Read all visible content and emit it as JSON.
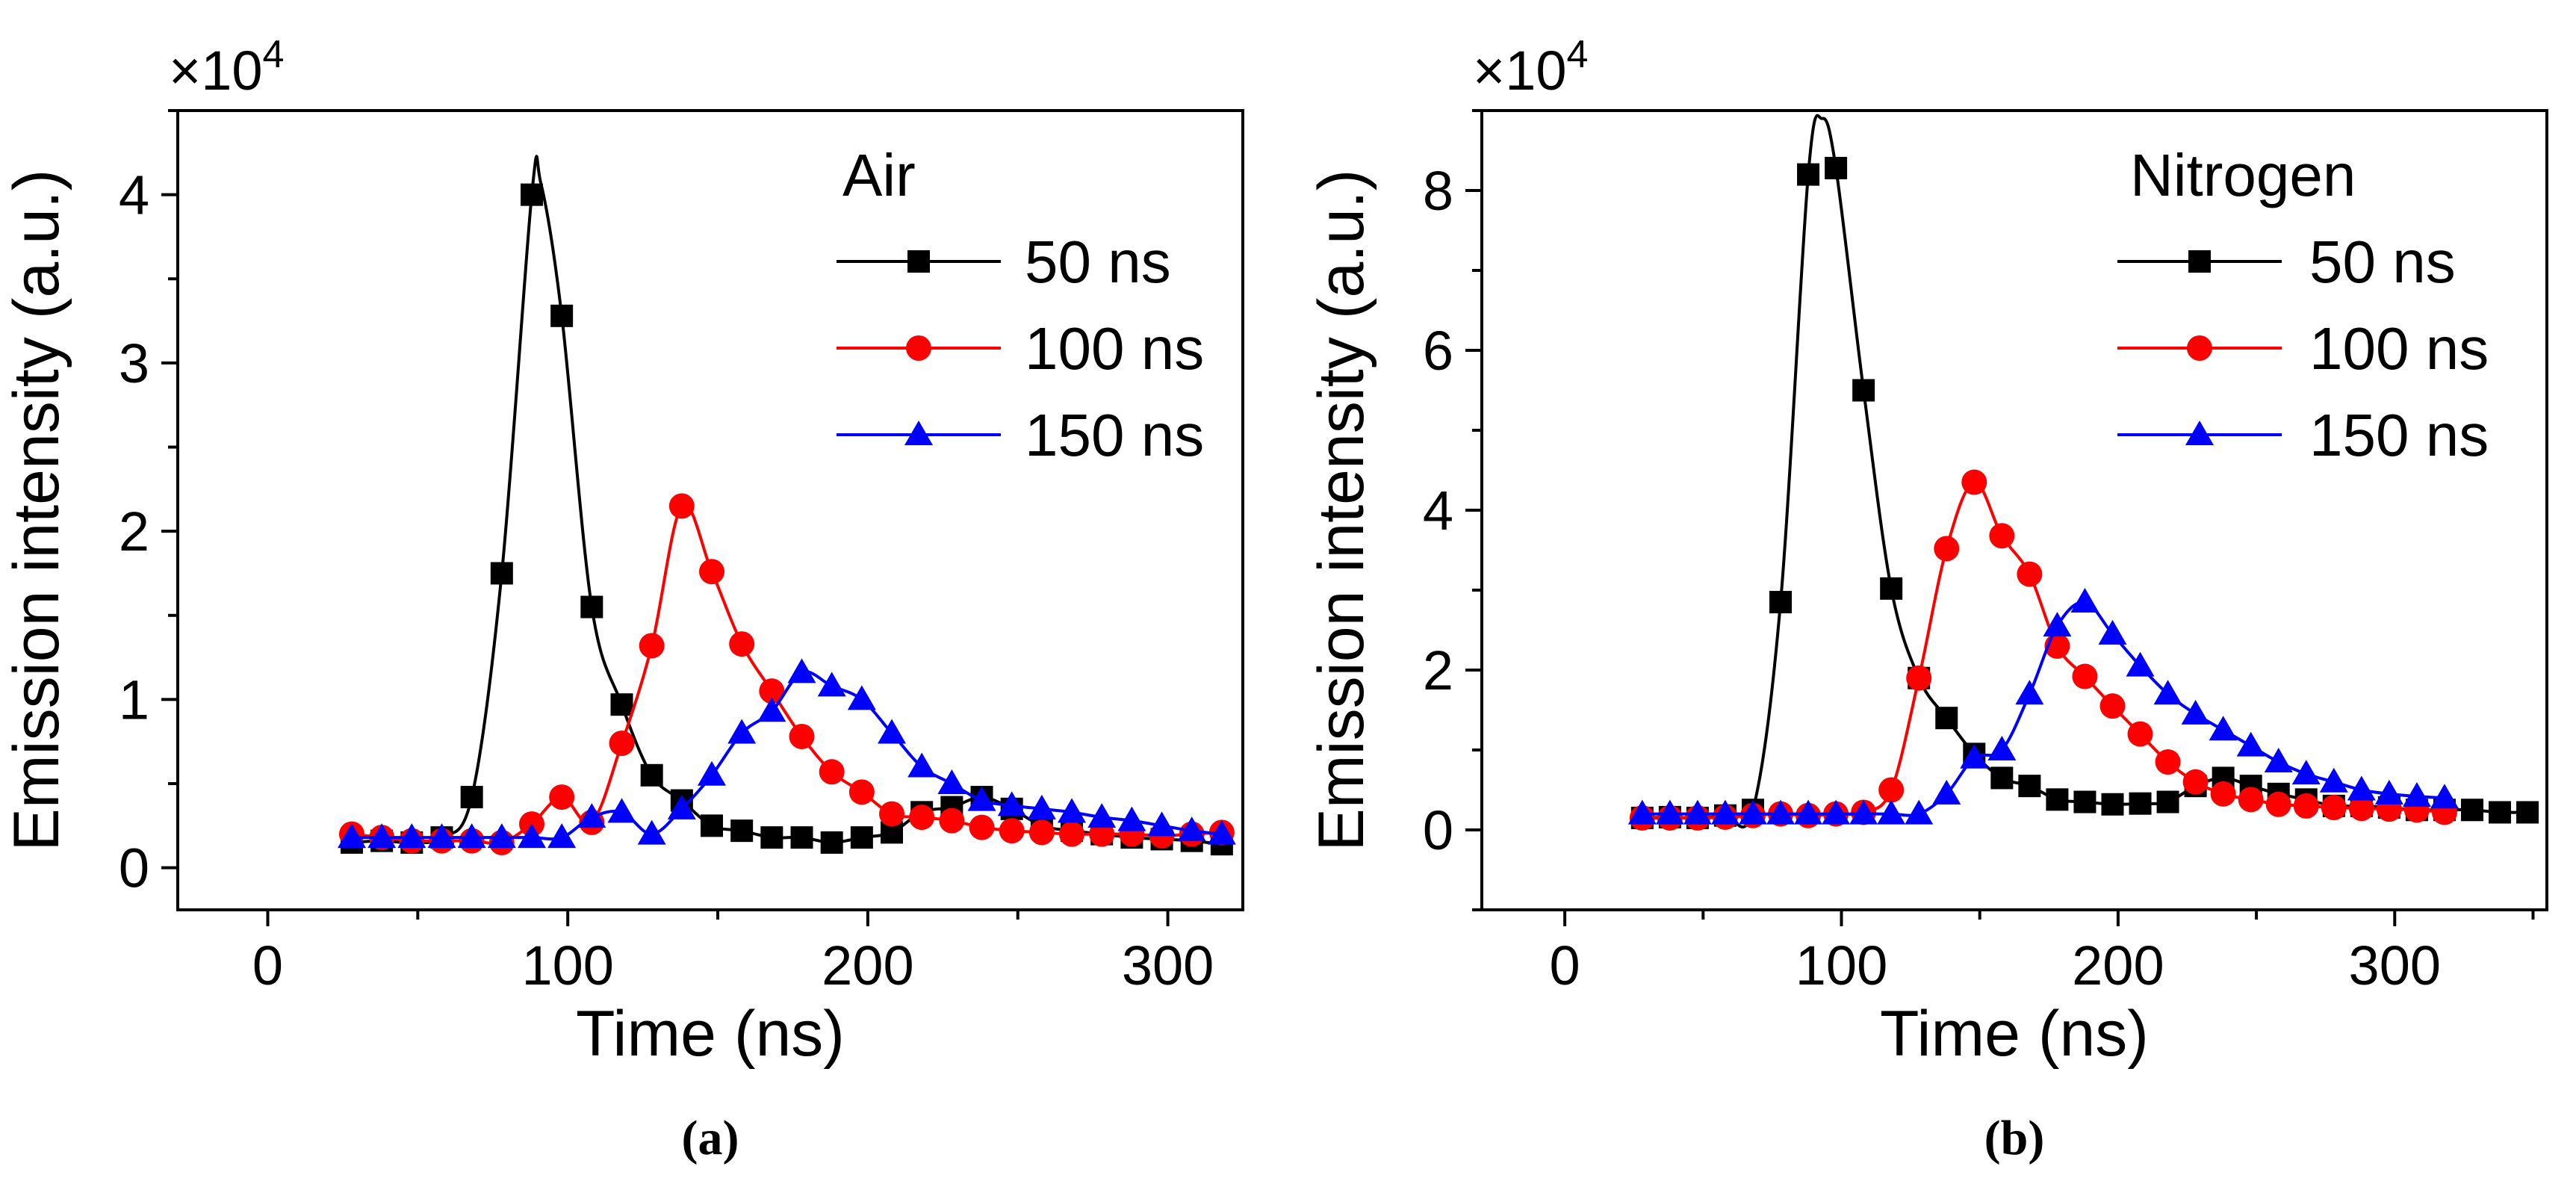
{
  "chart_data": [
    {
      "type": "line",
      "panel_label": "(a)",
      "legend_title": "Air",
      "multiplier": "×10",
      "multiplier_exp": "4",
      "xlabel": "Time (ns)",
      "ylabel": "Emission intensity (a.u.)",
      "xlim": [
        -30,
        325
      ],
      "ylim": [
        -0.25,
        4.5
      ],
      "xticks": [
        0,
        100,
        200,
        300
      ],
      "yticks": [
        0,
        1,
        2,
        3,
        4
      ],
      "legend_position": "top-right",
      "series": [
        {
          "name": "50 ns",
          "color": "#000000",
          "marker": "square",
          "x": [
            28,
            38,
            48,
            58,
            68,
            78,
            88,
            98,
            108,
            118,
            128,
            138,
            148,
            158,
            168,
            178,
            188,
            198,
            208,
            218,
            228,
            238,
            248,
            258,
            268,
            278,
            288,
            298,
            308,
            318
          ],
          "y": [
            0.15,
            0.16,
            0.15,
            0.18,
            0.42,
            1.75,
            4.0,
            3.28,
            1.55,
            0.97,
            0.55,
            0.4,
            0.25,
            0.22,
            0.18,
            0.18,
            0.15,
            0.18,
            0.21,
            0.33,
            0.36,
            0.42,
            0.35,
            0.25,
            0.22,
            0.2,
            0.18,
            0.17,
            0.16,
            0.14
          ],
          "smooth_peak": {
            "x": 91,
            "y": 4.07
          }
        },
        {
          "name": "100 ns",
          "color": "#ff0000",
          "marker": "circle",
          "x": [
            28,
            38,
            48,
            58,
            68,
            78,
            88,
            98,
            108,
            118,
            128,
            138,
            148,
            158,
            168,
            178,
            188,
            198,
            208,
            218,
            228,
            238,
            248,
            258,
            268,
            278,
            288,
            298,
            308,
            318
          ],
          "y": [
            0.2,
            0.18,
            0.16,
            0.16,
            0.16,
            0.15,
            0.26,
            0.42,
            0.27,
            0.74,
            1.32,
            2.15,
            1.76,
            1.33,
            1.05,
            0.78,
            0.57,
            0.45,
            0.32,
            0.3,
            0.28,
            0.24,
            0.22,
            0.21,
            0.2,
            0.2,
            0.2,
            0.19,
            0.2,
            0.21
          ]
        },
        {
          "name": "150 ns",
          "color": "#0000ff",
          "marker": "triangle",
          "x": [
            28,
            38,
            48,
            58,
            68,
            78,
            88,
            98,
            108,
            118,
            128,
            138,
            148,
            158,
            168,
            178,
            188,
            198,
            208,
            218,
            228,
            238,
            248,
            258,
            268,
            278,
            288,
            298,
            308,
            318
          ],
          "y": [
            0.18,
            0.18,
            0.18,
            0.18,
            0.18,
            0.18,
            0.18,
            0.18,
            0.3,
            0.33,
            0.2,
            0.35,
            0.55,
            0.8,
            0.93,
            1.16,
            1.08,
            1.0,
            0.8,
            0.6,
            0.5,
            0.4,
            0.37,
            0.35,
            0.33,
            0.3,
            0.28,
            0.25,
            0.22,
            0.2
          ]
        }
      ]
    },
    {
      "type": "line",
      "panel_label": "(b)",
      "legend_title": "Nitrogen",
      "multiplier": "×10",
      "multiplier_exp": "4",
      "xlabel": "Time (ns)",
      "ylabel": "Emission intensity (a.u.)",
      "xlim": [
        -30,
        355
      ],
      "ylim": [
        -1,
        9
      ],
      "xticks": [
        0,
        100,
        200,
        300
      ],
      "yticks": [
        0,
        2,
        4,
        6,
        8
      ],
      "legend_position": "top-right",
      "series": [
        {
          "name": "50 ns",
          "color": "#000000",
          "marker": "square",
          "x": [
            28,
            38,
            48,
            58,
            68,
            78,
            88,
            98,
            108,
            118,
            128,
            138,
            148,
            158,
            168,
            178,
            188,
            198,
            208,
            218,
            228,
            238,
            248,
            258,
            268,
            278,
            288,
            298,
            308,
            318,
            328,
            338,
            348
          ],
          "y": [
            0.15,
            0.16,
            0.15,
            0.18,
            0.25,
            2.85,
            8.2,
            8.28,
            5.5,
            3.02,
            1.9,
            1.4,
            0.95,
            0.65,
            0.55,
            0.38,
            0.35,
            0.32,
            0.33,
            0.35,
            0.55,
            0.65,
            0.55,
            0.45,
            0.38,
            0.3,
            0.3,
            0.28,
            0.25,
            0.25,
            0.25,
            0.22,
            0.22
          ],
          "smooth_peak": {
            "x": 93,
            "y": 8.9
          }
        },
        {
          "name": "100 ns",
          "color": "#ff0000",
          "marker": "circle",
          "x": [
            28,
            38,
            48,
            58,
            68,
            78,
            88,
            98,
            108,
            118,
            128,
            138,
            148,
            158,
            168,
            178,
            188,
            198,
            208,
            218,
            228,
            238,
            248,
            258,
            268,
            278,
            288,
            298,
            308,
            318
          ],
          "y": [
            0.15,
            0.15,
            0.15,
            0.16,
            0.18,
            0.2,
            0.18,
            0.2,
            0.22,
            0.5,
            1.9,
            3.52,
            4.35,
            3.68,
            3.2,
            2.3,
            1.92,
            1.55,
            1.2,
            0.85,
            0.6,
            0.45,
            0.38,
            0.32,
            0.3,
            0.28,
            0.27,
            0.26,
            0.25,
            0.22
          ]
        },
        {
          "name": "150 ns",
          "color": "#0000ff",
          "marker": "triangle",
          "x": [
            28,
            38,
            48,
            58,
            68,
            78,
            88,
            98,
            108,
            118,
            128,
            138,
            148,
            158,
            168,
            178,
            188,
            198,
            208,
            218,
            228,
            238,
            248,
            258,
            268,
            278,
            288,
            298,
            308,
            318
          ],
          "y": [
            0.2,
            0.2,
            0.2,
            0.2,
            0.2,
            0.2,
            0.2,
            0.2,
            0.2,
            0.2,
            0.2,
            0.45,
            0.9,
            1.0,
            1.7,
            2.55,
            2.85,
            2.45,
            2.05,
            1.7,
            1.45,
            1.25,
            1.05,
            0.85,
            0.7,
            0.6,
            0.5,
            0.45,
            0.42,
            0.4
          ]
        }
      ]
    }
  ]
}
